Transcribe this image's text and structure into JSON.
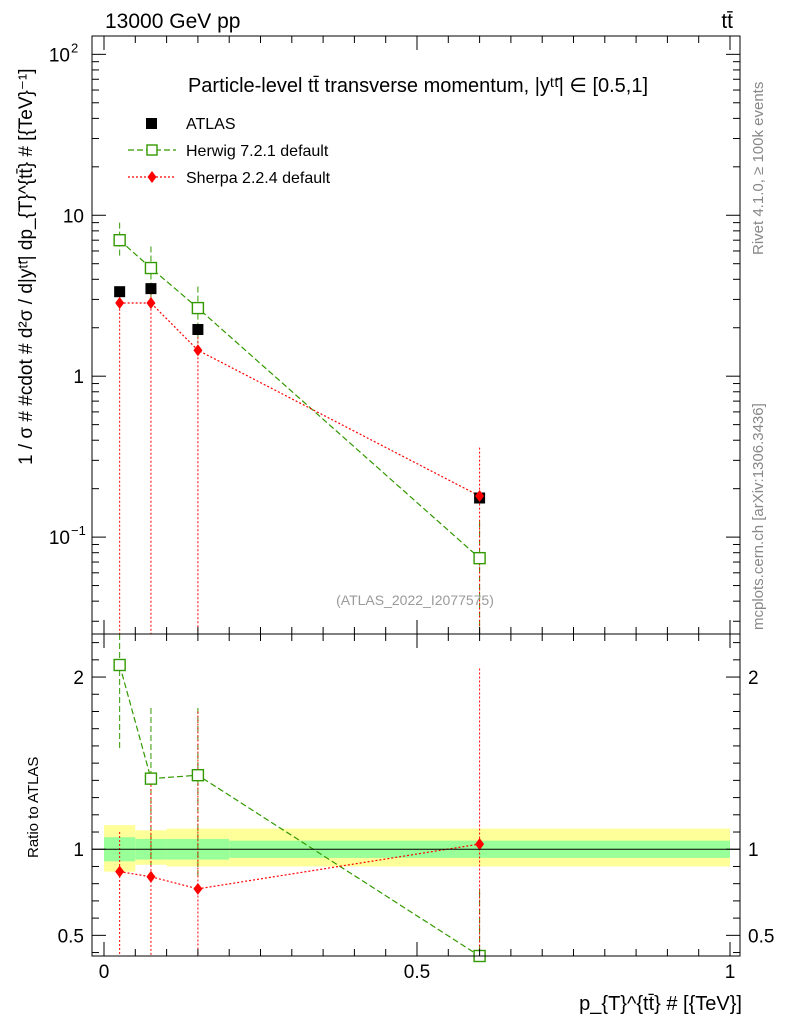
{
  "header": {
    "left": "13000 GeV pp",
    "right": "tt̄"
  },
  "side_labels": {
    "top": "Rivet 4.1.0, ≥ 100k events",
    "bottom": "mcplots.cern.ch [arXiv:1306.3436]"
  },
  "chart_data": {
    "type": "scatter",
    "title": "Particle-level tt̄ transverse momentum, |yᵗᵗ̄| ∈ [0.5,1]",
    "watermark": "(ATLAS_2022_I2077575)",
    "xlabel": "p_{T}^{tt̄} # [{TeV}]",
    "ylabel": "1 / σ # #cdot # d²σ / d|yᵗᵗ̄| dp_{T}^{tt̄} # [{TeV}⁻¹]",
    "ratio_ylabel": "Ratio to ATLAS",
    "xlim": [
      0,
      1
    ],
    "ylim": [
      0.025,
      130
    ],
    "yscale": "log",
    "ratio_ylim": [
      0.38,
      2.25
    ],
    "x_ticks": [
      {
        "v": 0,
        "label": "0"
      },
      {
        "v": 0.5,
        "label": "0.5"
      },
      {
        "v": 1,
        "label": "1"
      }
    ],
    "y_ticks": [
      {
        "v": 0.1,
        "base": "10",
        "exp": "−1"
      },
      {
        "v": 1,
        "base": "1",
        "exp": ""
      },
      {
        "v": 10,
        "base": "10",
        "exp": ""
      },
      {
        "v": 100,
        "base": "10",
        "exp": "2"
      }
    ],
    "ratio_ticks": [
      {
        "v": 0.5,
        "label": "0.5"
      },
      {
        "v": 1,
        "label": "1"
      },
      {
        "v": 2,
        "label": "2"
      }
    ],
    "legend": [
      {
        "name": "ATLAS"
      },
      {
        "name": "Herwig 7.2.1 default"
      },
      {
        "name": "Sherpa 2.2.4 default"
      }
    ],
    "data": {
      "name": "ATLAS",
      "color": "#000000",
      "x": [
        0.025,
        0.075,
        0.15,
        0.6
      ],
      "y": [
        3.35,
        3.5,
        1.95,
        0.175
      ],
      "bins": [
        [
          0,
          0.05
        ],
        [
          0.05,
          0.1
        ],
        [
          0.1,
          0.2
        ],
        [
          0.2,
          1.0
        ]
      ],
      "band_inner": [
        [
          0.93,
          1.07
        ],
        [
          0.94,
          1.06
        ],
        [
          0.94,
          1.06
        ],
        [
          0.95,
          1.05
        ]
      ],
      "band_outer": [
        [
          0.87,
          1.14
        ],
        [
          0.91,
          1.11
        ],
        [
          0.9,
          1.12
        ],
        [
          0.9,
          1.12
        ]
      ]
    },
    "series": [
      {
        "name": "Herwig 7.2.1 default",
        "color": "#339900",
        "marker": "open-square",
        "dash": "6,3",
        "x": [
          0.025,
          0.075,
          0.15,
          0.6
        ],
        "values": [
          7.0,
          4.7,
          2.65,
          0.074
        ],
        "err_lo": [
          5.5,
          3.1,
          1.6,
          0.025
        ],
        "err_hi": [
          9.0,
          6.4,
          3.6,
          0.125
        ],
        "ratio": [
          2.07,
          1.41,
          1.43,
          0.38
        ],
        "ratio_lo": [
          1.58,
          0.9,
          0.83,
          0.3
        ],
        "ratio_hi": [
          2.3,
          1.82,
          1.82,
          0.76
        ]
      },
      {
        "name": "Sherpa 2.2.4 default",
        "color": "#ff0000",
        "marker": "diamond",
        "dash": "2,2",
        "x": [
          0.025,
          0.075,
          0.15,
          0.6
        ],
        "values": [
          2.85,
          2.85,
          1.45,
          0.18
        ],
        "err_lo": [
          0.02,
          0.02,
          0.02,
          0.02
        ],
        "err_hi": [
          3.3,
          3.3,
          1.85,
          0.36
        ],
        "ratio": [
          0.87,
          0.84,
          0.77,
          1.03
        ],
        "ratio_lo": [
          0.3,
          0.3,
          0.3,
          0.3
        ],
        "ratio_hi": [
          1.1,
          1.42,
          1.8,
          2.05
        ]
      }
    ]
  }
}
